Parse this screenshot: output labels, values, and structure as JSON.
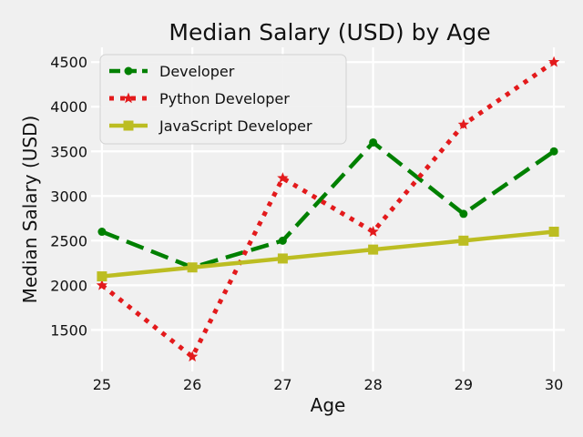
{
  "chart_data": {
    "type": "line",
    "title": "Median Salary (USD) by Age",
    "xlabel": "Age",
    "ylabel": "Median Salary (USD)",
    "x": [
      25,
      26,
      27,
      28,
      29,
      30
    ],
    "xlim": [
      24.88,
      30.12
    ],
    "ylim": [
      1035,
      4665
    ],
    "yticks": [
      1500,
      2000,
      2500,
      3000,
      3500,
      4000,
      4500
    ],
    "grid": true,
    "legend_position": "top-left",
    "series": [
      {
        "name": "Developer",
        "values": [
          2600,
          2200,
          2500,
          3600,
          2800,
          3500
        ],
        "color": "#008000",
        "linestyle": "dashed",
        "marker": "circle"
      },
      {
        "name": "Python Developer",
        "values": [
          2000,
          1200,
          3200,
          2600,
          3800,
          4500
        ],
        "color": "#e31a1c",
        "linestyle": "dotted",
        "marker": "star"
      },
      {
        "name": "JavaScript Developer",
        "values": [
          2100,
          2200,
          2300,
          2400,
          2500,
          2600
        ],
        "color": "#bcbd22",
        "linestyle": "solid",
        "marker": "square"
      }
    ]
  }
}
